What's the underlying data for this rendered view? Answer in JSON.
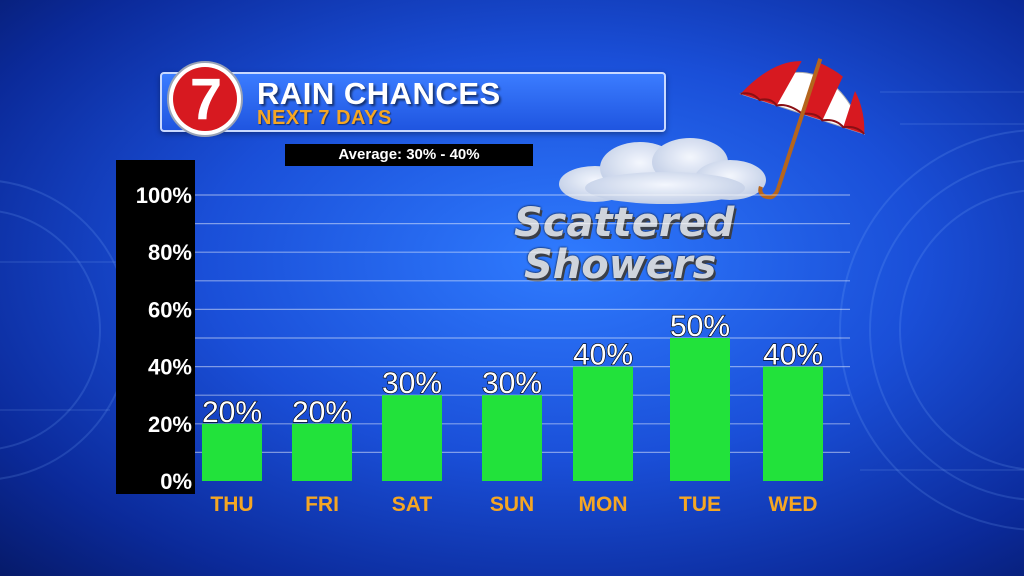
{
  "header": {
    "title": "RAIN CHANCES",
    "subtitle": "NEXT 7 DAYS",
    "average": "Average: 30% - 40%",
    "logo_text": "7"
  },
  "annotation": {
    "line1": "Scattered",
    "line2": "Showers"
  },
  "colors": {
    "bar": "#22e23b",
    "axis_panel": "#000000",
    "day_label": "#f5a623",
    "header_accent": "#f5a623",
    "logo_red": "#d71920"
  },
  "icons": [
    "umbrella-icon",
    "cloud-icon",
    "station-7-logo"
  ],
  "chart_data": {
    "type": "bar",
    "title": "RAIN CHANCES",
    "subtitle": "NEXT 7 DAYS",
    "categories": [
      "THU",
      "FRI",
      "SAT",
      "SUN",
      "MON",
      "TUE",
      "WED"
    ],
    "values": [
      20,
      20,
      30,
      30,
      40,
      50,
      40
    ],
    "data_labels": [
      "20%",
      "20%",
      "30%",
      "30%",
      "40%",
      "50%",
      "40%"
    ],
    "yticks": [
      0,
      20,
      40,
      60,
      80,
      100
    ],
    "ytick_labels": [
      "0%",
      "20%",
      "40%",
      "60%",
      "80%",
      "100%"
    ],
    "ylim": [
      0,
      100
    ],
    "grid": true,
    "xlabel": "",
    "ylabel": ""
  }
}
